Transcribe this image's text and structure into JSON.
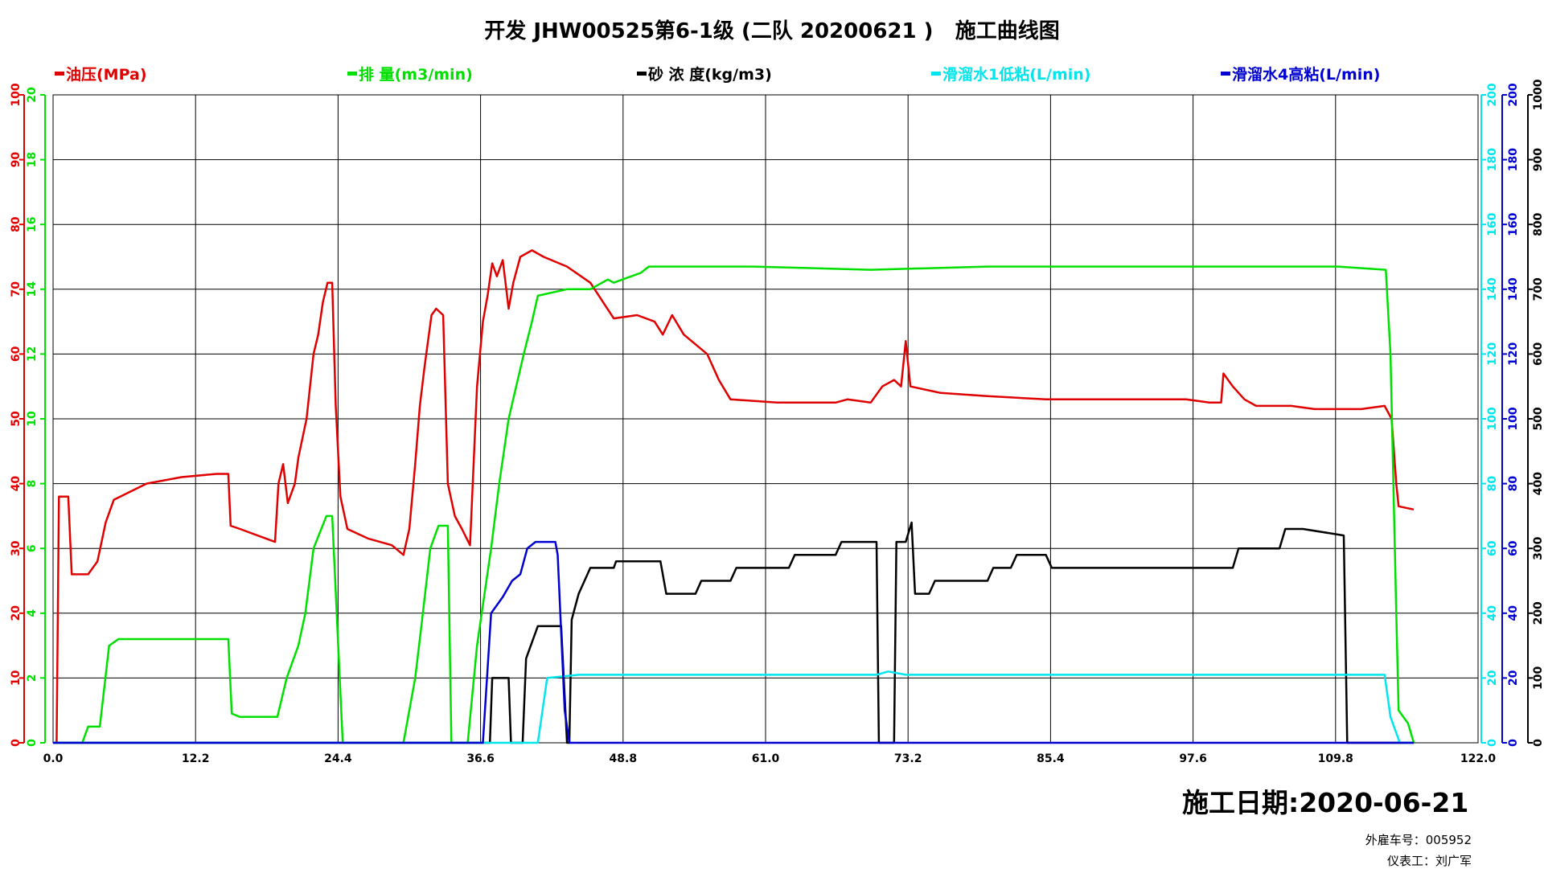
{
  "title": "开发 JHW00525第6-1级 (二队 20200621 )   施工曲线图",
  "date_label": "施工日期:2020-06-21",
  "footer": {
    "truck": "外雇车号：005952",
    "operator": "仪表工：刘广军"
  },
  "chart_data": {
    "type": "line",
    "xlim": [
      0,
      122.0
    ],
    "x_ticks": [
      "0.0",
      "12.2",
      "24.4",
      "36.6",
      "48.8",
      "61.0",
      "73.2",
      "85.4",
      "97.6",
      "109.8",
      "122.0"
    ],
    "grid": true,
    "legend_position": "top",
    "axes": [
      {
        "id": "pressure",
        "side": "left",
        "range": [
          0,
          100
        ],
        "ticks": [
          "0",
          "10",
          "20",
          "30",
          "40",
          "50",
          "60",
          "70",
          "80",
          "90",
          "100"
        ],
        "color": "#e00000"
      },
      {
        "id": "rate",
        "side": "left",
        "range": [
          0,
          20
        ],
        "ticks": [
          "0",
          "2",
          "4",
          "6",
          "8",
          "10",
          "12",
          "14",
          "16",
          "18",
          "20"
        ],
        "color": "#00e000"
      },
      {
        "id": "friction_low",
        "side": "right",
        "range": [
          0,
          200
        ],
        "ticks": [
          "0",
          "20",
          "40",
          "60",
          "80",
          "100",
          "120",
          "140",
          "160",
          "180",
          "200"
        ],
        "color": "#00e5ee"
      },
      {
        "id": "friction_high",
        "side": "right",
        "range": [
          0,
          200
        ],
        "ticks": [
          "0",
          "20",
          "40",
          "60",
          "80",
          "100",
          "120",
          "140",
          "160",
          "180",
          "200"
        ],
        "color": "#0000d0"
      },
      {
        "id": "sand",
        "side": "right",
        "range": [
          0,
          1000
        ],
        "ticks": [
          "0",
          "100",
          "200",
          "300",
          "400",
          "500",
          "600",
          "700",
          "800",
          "900",
          "1000"
        ],
        "color": "#000000"
      }
    ],
    "series": [
      {
        "name": "油压(MPa)",
        "color": "#e00000",
        "axis": "pressure",
        "points": [
          [
            0,
            0
          ],
          [
            0.3,
            0
          ],
          [
            0.5,
            38
          ],
          [
            1.3,
            38
          ],
          [
            1.6,
            26
          ],
          [
            3,
            26
          ],
          [
            3.8,
            28
          ],
          [
            4.5,
            34
          ],
          [
            5.2,
            37.5
          ],
          [
            8,
            40
          ],
          [
            11,
            41
          ],
          [
            14,
            41.5
          ],
          [
            15,
            41.5
          ],
          [
            15.2,
            33.5
          ],
          [
            16,
            33
          ],
          [
            17.5,
            32
          ],
          [
            19,
            31
          ],
          [
            19.3,
            40
          ],
          [
            19.7,
            43
          ],
          [
            20.1,
            37
          ],
          [
            20.7,
            40
          ],
          [
            21,
            44
          ],
          [
            21.7,
            50
          ],
          [
            22.3,
            60
          ],
          [
            22.7,
            63
          ],
          [
            23.1,
            68
          ],
          [
            23.5,
            71
          ],
          [
            23.9,
            71
          ],
          [
            24.2,
            52
          ],
          [
            24.6,
            38
          ],
          [
            25.2,
            33
          ],
          [
            27,
            31.5
          ],
          [
            29,
            30.5
          ],
          [
            30,
            29
          ],
          [
            30.5,
            33
          ],
          [
            31,
            43
          ],
          [
            31.4,
            52
          ],
          [
            31.8,
            58
          ],
          [
            32.4,
            66
          ],
          [
            32.8,
            67
          ],
          [
            33.4,
            66
          ],
          [
            33.8,
            40
          ],
          [
            34.4,
            35
          ],
          [
            35,
            33
          ],
          [
            35.7,
            30.5
          ],
          [
            36.3,
            55
          ],
          [
            36.8,
            65
          ],
          [
            37.2,
            69
          ],
          [
            37.6,
            74
          ],
          [
            38,
            72
          ],
          [
            38.5,
            74.5
          ],
          [
            39,
            67
          ],
          [
            39.4,
            71
          ],
          [
            40,
            75
          ],
          [
            41,
            76
          ],
          [
            42,
            75
          ],
          [
            44,
            73.5
          ],
          [
            46,
            71
          ],
          [
            48,
            65.5
          ],
          [
            50,
            66
          ],
          [
            51.5,
            65
          ],
          [
            52.2,
            63
          ],
          [
            53,
            66
          ],
          [
            54,
            63
          ],
          [
            56,
            60
          ],
          [
            57,
            56
          ],
          [
            58,
            53
          ],
          [
            62,
            52.5
          ],
          [
            67,
            52.5
          ],
          [
            68,
            53
          ],
          [
            70,
            52.5
          ],
          [
            71,
            55
          ],
          [
            72,
            56
          ],
          [
            72.6,
            55
          ],
          [
            73,
            62
          ],
          [
            73.4,
            55
          ],
          [
            76,
            54
          ],
          [
            80,
            53.5
          ],
          [
            85,
            53
          ],
          [
            90,
            53
          ],
          [
            95,
            53
          ],
          [
            97,
            53
          ],
          [
            99,
            52.5
          ],
          [
            100,
            52.5
          ],
          [
            100.2,
            57
          ],
          [
            101,
            55
          ],
          [
            102,
            53
          ],
          [
            103,
            52
          ],
          [
            106,
            52
          ],
          [
            108,
            51.5
          ],
          [
            112,
            51.5
          ],
          [
            114,
            52
          ],
          [
            114.6,
            50
          ],
          [
            115,
            40
          ],
          [
            115.2,
            36.5
          ],
          [
            116.5,
            36
          ]
        ]
      },
      {
        "name": "排  量(m3/min)",
        "color": "#00e000",
        "axis": "rate",
        "points": [
          [
            0,
            0
          ],
          [
            0.8,
            0
          ],
          [
            2.5,
            0
          ],
          [
            3,
            0.5
          ],
          [
            4,
            0.5
          ],
          [
            4.8,
            3
          ],
          [
            5.6,
            3.2
          ],
          [
            8,
            3.2
          ],
          [
            12,
            3.2
          ],
          [
            15,
            3.2
          ],
          [
            15.3,
            0.9
          ],
          [
            16,
            0.8
          ],
          [
            18,
            0.8
          ],
          [
            19.2,
            0.8
          ],
          [
            20,
            2
          ],
          [
            21,
            3
          ],
          [
            21.6,
            4
          ],
          [
            22.3,
            6
          ],
          [
            23.4,
            7
          ],
          [
            23.9,
            7
          ],
          [
            24.8,
            0
          ],
          [
            30,
            0
          ],
          [
            31,
            2
          ],
          [
            31.5,
            3.5
          ],
          [
            32.3,
            6
          ],
          [
            33,
            6.7
          ],
          [
            33.8,
            6.7
          ],
          [
            34.1,
            0
          ],
          [
            35.5,
            0
          ],
          [
            36.3,
            3
          ],
          [
            37.5,
            6
          ],
          [
            38.2,
            8
          ],
          [
            39,
            10
          ],
          [
            40.3,
            12
          ],
          [
            41,
            13
          ],
          [
            41.5,
            13.8
          ],
          [
            44,
            14
          ],
          [
            46,
            14
          ],
          [
            47.5,
            14.3
          ],
          [
            48,
            14.2
          ],
          [
            49.5,
            14.4
          ],
          [
            50.3,
            14.5
          ],
          [
            51,
            14.7
          ],
          [
            60,
            14.7
          ],
          [
            70,
            14.6
          ],
          [
            80,
            14.7
          ],
          [
            90,
            14.7
          ],
          [
            100,
            14.7
          ],
          [
            110,
            14.7
          ],
          [
            114.1,
            14.6
          ],
          [
            114.5,
            12
          ],
          [
            115,
            4
          ],
          [
            115.2,
            1
          ],
          [
            116,
            0.6
          ],
          [
            116.5,
            0
          ]
        ]
      },
      {
        "name": "砂 浓 度(kg/m3)",
        "color": "#000000",
        "axis": "sand",
        "points": [
          [
            0,
            0
          ],
          [
            37.4,
            0
          ],
          [
            37.6,
            100
          ],
          [
            39,
            100
          ],
          [
            39.2,
            0
          ],
          [
            40.2,
            0
          ],
          [
            40.5,
            130
          ],
          [
            41.5,
            180
          ],
          [
            42.5,
            180
          ],
          [
            43.5,
            180
          ],
          [
            44,
            0
          ],
          [
            44.2,
            0
          ],
          [
            44.4,
            190
          ],
          [
            45,
            230
          ],
          [
            46,
            270
          ],
          [
            48,
            270
          ],
          [
            48.2,
            280
          ],
          [
            52,
            280
          ],
          [
            52.5,
            230
          ],
          [
            55,
            230
          ],
          [
            55.5,
            250
          ],
          [
            58,
            250
          ],
          [
            58.5,
            270
          ],
          [
            63,
            270
          ],
          [
            63.5,
            290
          ],
          [
            67,
            290
          ],
          [
            67.5,
            310
          ],
          [
            70.5,
            310
          ],
          [
            70.7,
            0
          ],
          [
            72,
            0
          ],
          [
            72.2,
            310
          ],
          [
            73,
            310
          ],
          [
            73.5,
            340
          ],
          [
            73.8,
            230
          ],
          [
            74,
            230
          ],
          [
            75,
            230
          ],
          [
            75.5,
            250
          ],
          [
            80,
            250
          ],
          [
            80.5,
            270
          ],
          [
            82,
            270
          ],
          [
            82.5,
            290
          ],
          [
            85,
            290
          ],
          [
            85.5,
            270
          ],
          [
            95,
            270
          ],
          [
            101,
            270
          ],
          [
            101.5,
            300
          ],
          [
            105,
            300
          ],
          [
            105.5,
            330
          ],
          [
            107,
            330
          ],
          [
            110.5,
            320
          ],
          [
            110.8,
            0
          ],
          [
            116.5,
            0
          ]
        ]
      },
      {
        "name": "滑溜水1低粘(L/min)",
        "color": "#00e5ee",
        "axis": "friction_low",
        "points": [
          [
            0,
            0
          ],
          [
            41.5,
            0
          ],
          [
            42.3,
            20
          ],
          [
            45,
            21
          ],
          [
            55,
            21
          ],
          [
            65,
            21
          ],
          [
            70.5,
            21
          ],
          [
            71.5,
            22
          ],
          [
            73,
            21
          ],
          [
            80,
            21
          ],
          [
            90,
            21
          ],
          [
            100,
            21
          ],
          [
            110,
            21
          ],
          [
            114,
            21
          ],
          [
            114.5,
            8
          ],
          [
            115.3,
            0
          ],
          [
            116.5,
            0
          ]
        ]
      },
      {
        "name": "滑溜水4高粘(L/min)",
        "color": "#0000d0",
        "axis": "friction_high",
        "points": [
          [
            0,
            0
          ],
          [
            36.8,
            0
          ],
          [
            37.5,
            40
          ],
          [
            38.5,
            45
          ],
          [
            39.3,
            50
          ],
          [
            40,
            52
          ],
          [
            40.6,
            60
          ],
          [
            41.3,
            62
          ],
          [
            43,
            62
          ],
          [
            43.2,
            58
          ],
          [
            43.8,
            10
          ],
          [
            44.2,
            0
          ],
          [
            116.5,
            0
          ]
        ]
      }
    ]
  }
}
